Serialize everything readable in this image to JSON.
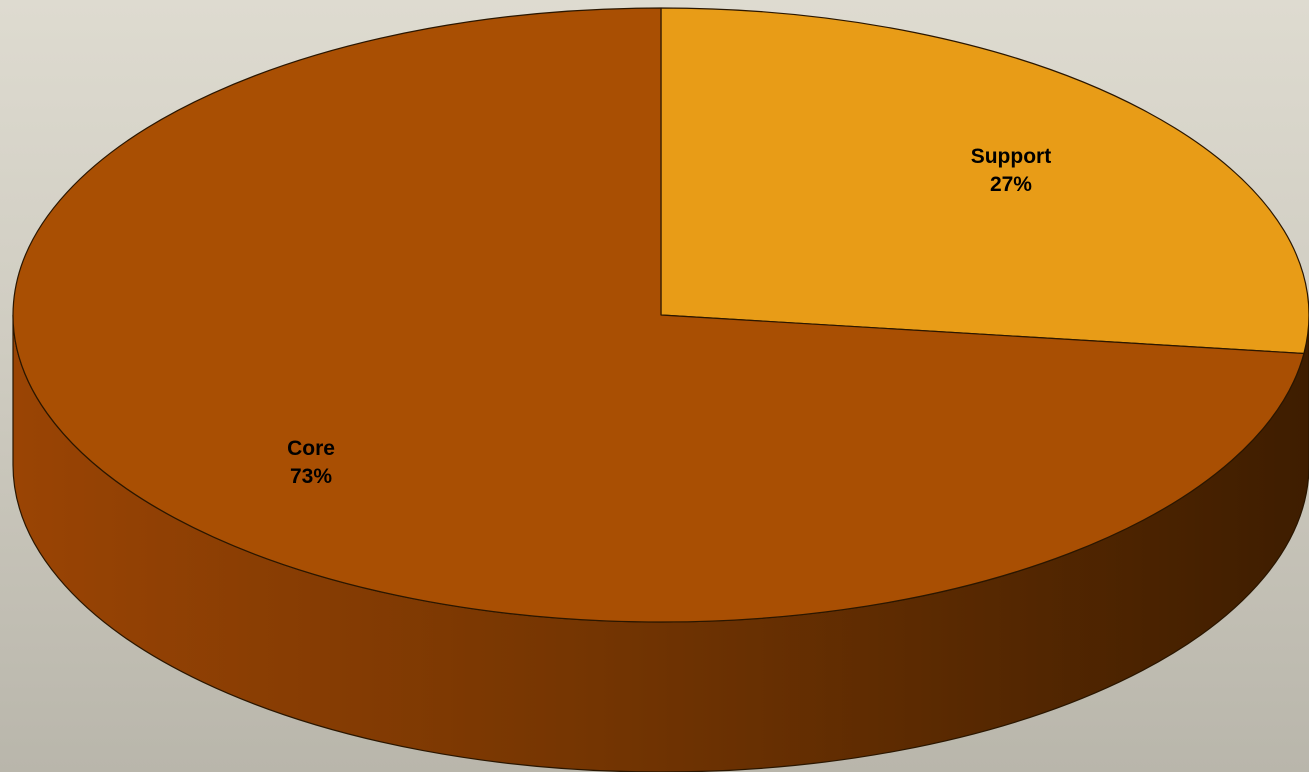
{
  "chart_data": {
    "type": "pie",
    "style": "3d",
    "categories": [
      "Support",
      "Core"
    ],
    "values": [
      27,
      73
    ],
    "data_labels": [
      "27%",
      "73%"
    ],
    "title": "",
    "legend": "none"
  },
  "colors": {
    "Support": "#e89c17",
    "Core": "#a94f03",
    "outline": "#2a1600",
    "side_light": "#9a4404",
    "side_dark": "#3e1d00"
  }
}
